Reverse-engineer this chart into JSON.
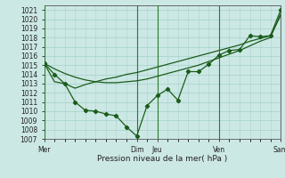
{
  "title": "",
  "xlabel": "Pression niveau de la mer( hPa )",
  "bg_color": "#cce8e4",
  "grid_color": "#aad4cf",
  "line_color": "#1a5c1a",
  "ylim": [
    1007,
    1021.5
  ],
  "yticks": [
    1007,
    1008,
    1009,
    1010,
    1011,
    1012,
    1013,
    1014,
    1015,
    1016,
    1017,
    1018,
    1019,
    1020,
    1021
  ],
  "day_labels": [
    "Mer",
    "Dim",
    "Jeu",
    "Ven",
    "Sam"
  ],
  "day_positions": [
    0,
    9,
    11,
    17,
    23
  ],
  "line1_x": [
    0,
    1,
    2,
    3,
    4,
    5,
    6,
    7,
    8,
    9,
    10,
    11,
    12,
    13,
    14,
    15,
    16,
    17,
    18,
    19,
    20,
    21,
    22,
    23
  ],
  "line1_y": [
    1015.2,
    1014.0,
    1013.0,
    1011.0,
    1010.1,
    1010.0,
    1009.7,
    1009.5,
    1008.3,
    1007.3,
    1010.6,
    1011.7,
    1012.4,
    1011.2,
    1014.3,
    1014.3,
    1015.1,
    1016.1,
    1016.6,
    1016.7,
    1018.2,
    1018.1,
    1018.2,
    1021.0
  ],
  "line2_y": [
    1015.2,
    1013.2,
    1013.0,
    1012.5,
    1012.9,
    1013.2,
    1013.5,
    1013.7,
    1014.0,
    1014.2,
    1014.5,
    1014.8,
    1015.1,
    1015.4,
    1015.7,
    1016.0,
    1016.3,
    1016.6,
    1016.9,
    1017.2,
    1017.6,
    1017.9,
    1018.2,
    1020.4
  ],
  "line3_y": [
    1015.2,
    1014.6,
    1014.1,
    1013.7,
    1013.4,
    1013.2,
    1013.1,
    1013.1,
    1013.2,
    1013.3,
    1013.5,
    1013.8,
    1014.1,
    1014.4,
    1014.7,
    1015.0,
    1015.4,
    1015.8,
    1016.2,
    1016.6,
    1017.1,
    1017.6,
    1018.0,
    1020.6
  ]
}
